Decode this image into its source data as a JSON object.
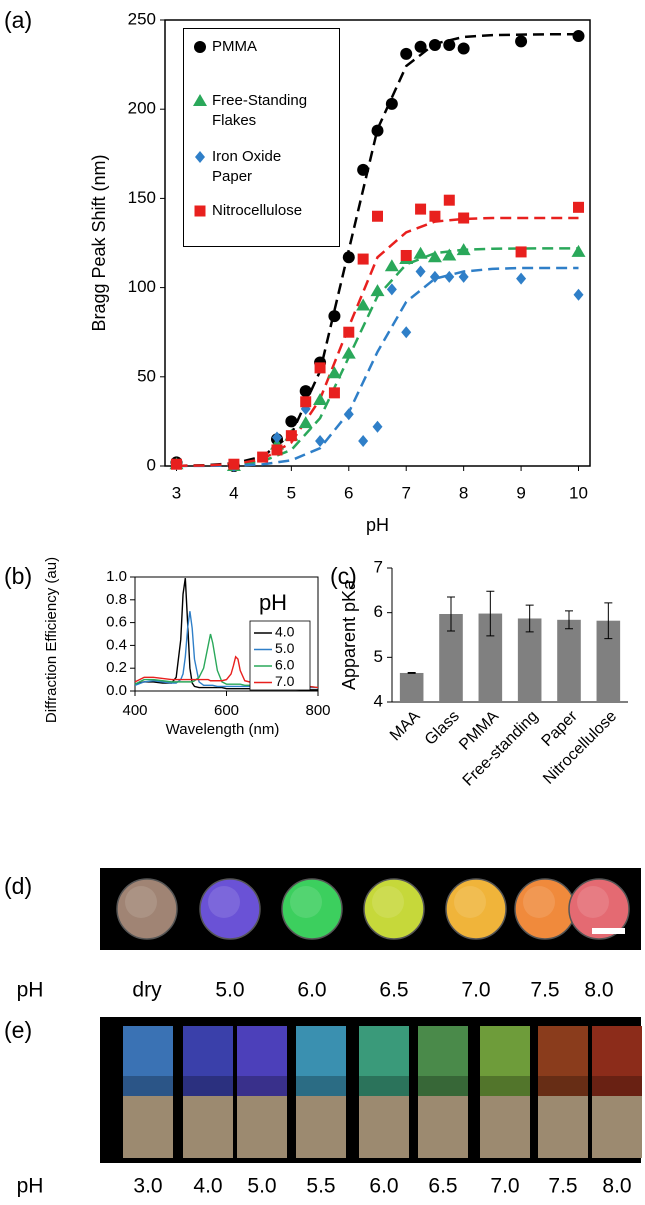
{
  "chart_data": [
    {
      "type": "scatter",
      "panel_label": "(a)",
      "x_label": "pH",
      "y_label": "Bragg Peak Shift (nm)",
      "xlim": [
        2.8,
        10.2
      ],
      "ylim": [
        0,
        250
      ],
      "xticks": [
        3,
        4,
        5,
        6,
        7,
        8,
        9,
        10
      ],
      "yticks": [
        0,
        50,
        100,
        150,
        200,
        250
      ],
      "fit_x": [
        3,
        3.5,
        4,
        4.5,
        5,
        5.5,
        6,
        6.5,
        7,
        7.5,
        8,
        8.5,
        9,
        9.5,
        10
      ],
      "series": [
        {
          "name": "PMMA",
          "color": "#000000",
          "marker": "circle",
          "x": [
            3,
            4,
            4.75,
            5,
            5.25,
            5.5,
            5.75,
            6,
            6.25,
            6.5,
            6.75,
            7,
            7.25,
            7.5,
            7.75,
            8,
            9,
            10
          ],
          "values": [
            2,
            0,
            15,
            25,
            42,
            58,
            84,
            117,
            166,
            188,
            203,
            231,
            235,
            236,
            236,
            234,
            238,
            241
          ],
          "fit": [
            0.1,
            0.4,
            1.5,
            5.3,
            17.8,
            53.2,
            121,
            188.8,
            224.2,
            236.7,
            240.5,
            241.5,
            241.8,
            242,
            242
          ]
        },
        {
          "name": "Free-Standing Flakes",
          "color": "#2aa85a",
          "marker": "triangle",
          "x": [
            3,
            4,
            4.75,
            5,
            5.25,
            5.5,
            5.75,
            6,
            6.25,
            6.5,
            6.75,
            7,
            7.25,
            7.5,
            7.75,
            8,
            10
          ],
          "values": [
            1,
            0,
            12,
            17,
            24,
            37,
            52,
            63,
            90,
            98,
            112,
            116,
            119,
            117,
            118,
            121,
            120
          ],
          "fit": [
            0.1,
            0.2,
            0.8,
            2.7,
            9,
            26.8,
            61,
            95.2,
            113,
            119.3,
            121.2,
            121.8,
            121.9,
            122,
            122
          ]
        },
        {
          "name": "Iron Oxide Paper",
          "color": "#2f7fc8",
          "marker": "diamond",
          "x": [
            3,
            4,
            4.75,
            5.25,
            5.5,
            6,
            6.25,
            6.5,
            6.75,
            7,
            7.25,
            7.5,
            7.75,
            8,
            9,
            10
          ],
          "values": [
            1,
            0,
            16,
            32,
            14,
            29,
            14,
            22,
            99,
            75,
            109,
            106,
            106,
            106,
            105,
            96
          ],
          "fit": [
            0,
            0.1,
            0.3,
            0.9,
            3.2,
            10,
            30,
            64,
            92,
            105,
            109,
            110.5,
            111,
            111,
            111
          ]
        },
        {
          "name": "Nitrocellulose",
          "color": "#e8201e",
          "marker": "square",
          "x": [
            3,
            4,
            4.5,
            4.75,
            5,
            5.25,
            5.5,
            5.75,
            6,
            6.25,
            6.5,
            7,
            7.25,
            7.5,
            7.75,
            8,
            9,
            10
          ],
          "values": [
            1,
            1,
            5,
            9,
            17,
            36,
            55,
            41,
            75,
            116,
            140,
            118,
            144,
            140,
            149,
            139,
            120,
            145
          ],
          "fit": [
            0.1,
            0.3,
            1.1,
            3.8,
            13.2,
            37.5,
            78,
            117,
            131,
            137,
            138.5,
            139,
            139,
            139,
            139
          ]
        }
      ]
    },
    {
      "type": "line",
      "panel_label": "(b)",
      "x_label": "Wavelength (nm)",
      "y_label": "Diffraction Efficiency (au)",
      "legend_title": "pH",
      "xlim": [
        400,
        800
      ],
      "ylim": [
        0,
        1
      ],
      "xticks": [
        400,
        600,
        800
      ],
      "yticks": [
        {
          "value": 0,
          "label": "0.0"
        },
        0.2,
        0.4,
        0.6,
        0.8,
        {
          "value": 1,
          "label": "1.0"
        }
      ],
      "x": [
        400,
        420,
        440,
        460,
        480,
        490,
        500,
        505,
        510,
        515,
        520,
        525,
        530,
        540,
        550,
        560,
        565,
        570,
        580,
        590,
        600,
        610,
        615,
        620,
        625,
        630,
        640,
        660,
        680,
        700,
        720,
        740,
        760,
        780,
        800
      ],
      "series": [
        {
          "name": "4.0",
          "color": "#000000",
          "values": [
            0.06,
            0.08,
            0.08,
            0.07,
            0.07,
            0.12,
            0.45,
            0.85,
            0.99,
            0.6,
            0.2,
            0.07,
            0.04,
            0.03,
            0.03,
            0.03,
            0.03,
            0.03,
            0.03,
            0.03,
            0.02,
            0.02,
            0.02,
            0.02,
            0.02,
            0.02,
            0.02,
            0.02,
            0.02,
            0.02,
            0.02,
            0.02,
            0.01,
            0.01,
            0.01
          ]
        },
        {
          "name": "5.0",
          "color": "#2f7fc8",
          "values": [
            0.05,
            0.08,
            0.09,
            0.08,
            0.07,
            0.07,
            0.1,
            0.15,
            0.3,
            0.55,
            0.7,
            0.55,
            0.28,
            0.08,
            0.05,
            0.05,
            0.05,
            0.05,
            0.04,
            0.04,
            0.04,
            0.04,
            0.04,
            0.04,
            0.04,
            0.04,
            0.04,
            0.04,
            0.03,
            0.03,
            0.03,
            0.03,
            0.03,
            0.03,
            0.03
          ]
        },
        {
          "name": "6.0",
          "color": "#2aa85a",
          "values": [
            0.06,
            0.1,
            0.1,
            0.09,
            0.08,
            0.08,
            0.08,
            0.08,
            0.08,
            0.08,
            0.08,
            0.08,
            0.09,
            0.12,
            0.2,
            0.4,
            0.5,
            0.42,
            0.18,
            0.08,
            0.06,
            0.06,
            0.06,
            0.06,
            0.06,
            0.06,
            0.05,
            0.05,
            0.05,
            0.04,
            0.04,
            0.04,
            0.04,
            0.04,
            0.03
          ]
        },
        {
          "name": "7.0",
          "color": "#e8201e",
          "values": [
            0.08,
            0.12,
            0.12,
            0.11,
            0.1,
            0.1,
            0.1,
            0.1,
            0.1,
            0.1,
            0.1,
            0.1,
            0.1,
            0.1,
            0.1,
            0.1,
            0.09,
            0.09,
            0.09,
            0.09,
            0.1,
            0.15,
            0.22,
            0.3,
            0.28,
            0.18,
            0.09,
            0.07,
            0.06,
            0.06,
            0.05,
            0.05,
            0.04,
            0.04,
            0.03
          ]
        }
      ]
    },
    {
      "type": "bar",
      "panel_label": "(c)",
      "y_label": "Apparent pKa",
      "categories": [
        "MAA",
        "Glass",
        "PMMA",
        "Free-standing",
        "Paper",
        "Nitrocellulose"
      ],
      "values": [
        4.65,
        5.97,
        5.98,
        5.87,
        5.84,
        5.82
      ],
      "errors": [
        0.01,
        0.38,
        0.5,
        0.3,
        0.2,
        0.4
      ],
      "color": "#808080",
      "ylim": [
        4,
        7
      ],
      "yticks": [
        4,
        5,
        6,
        7
      ]
    }
  ],
  "photo_d": {
    "panel_label": "(d)",
    "row_label": "pH",
    "labels": [
      "dry",
      "5.0",
      "6.0",
      "6.5",
      "7.0",
      "7.5",
      "8.0"
    ],
    "colors": [
      "#a08474",
      "#6a52d6",
      "#3ccf5e",
      "#c6d83a",
      "#f0b43a",
      "#f08a3c",
      "#e46a72"
    ]
  },
  "photo_e": {
    "panel_label": "(e)",
    "row_label": "pH",
    "labels": [
      "3.0",
      "4.0",
      "5.0",
      "5.5",
      "6.0",
      "6.5",
      "7.0",
      "7.5",
      "8.0"
    ],
    "colors": [
      "#3a72b4",
      "#3a40aa",
      "#4c40ba",
      "#3a90b0",
      "#3a9a7a",
      "#4a8a4a",
      "#6e9c3a",
      "#8a3c1c",
      "#8c2c1a"
    ]
  }
}
